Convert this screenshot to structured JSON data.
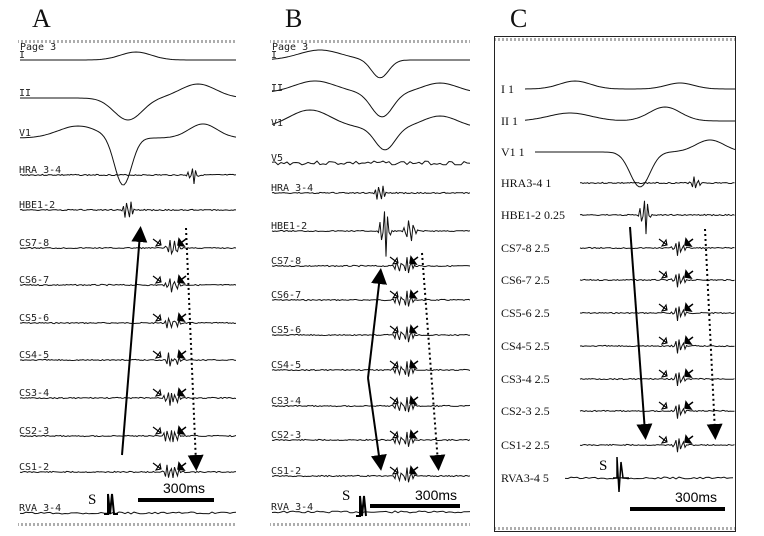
{
  "chart_data": {
    "type": "line",
    "panels": [
      {
        "letter": "A",
        "page_label": "Page 3",
        "channels": [
          "I",
          "II",
          "V1",
          "HRA 3-4",
          "HBE1-2",
          "CS7-8",
          "CS6-7",
          "CS5-6",
          "CS4-5",
          "CS3-4",
          "CS2-3",
          "CS1-2",
          "RVA 3-4"
        ],
        "stim_label": "S",
        "scale_label": "300ms"
      },
      {
        "letter": "B",
        "page_label": "Page 3",
        "channels": [
          "I",
          "II",
          "V1",
          "V5",
          "HRA 3-4",
          "HBE1-2",
          "CS7-8",
          "CS6-7",
          "CS5-6",
          "CS4-5",
          "CS3-4",
          "CS2-3",
          "CS1-2",
          "RVA 3-4"
        ],
        "stim_label": "S",
        "scale_label": "300ms"
      },
      {
        "letter": "C",
        "channels": [
          "I  1",
          "II  1",
          "V1  1",
          "HRA3-4  1",
          "HBE1-2  0.25",
          "CS7-8  2.5",
          "CS6-7  2.5",
          "CS5-6  2.5",
          "CS4-5  2.5",
          "CS3-4  2.5",
          "CS2-3  2.5",
          "CS1-2  2.5",
          "RVA3-4  5"
        ],
        "stim_label": "S",
        "scale_label": "300ms"
      }
    ]
  }
}
